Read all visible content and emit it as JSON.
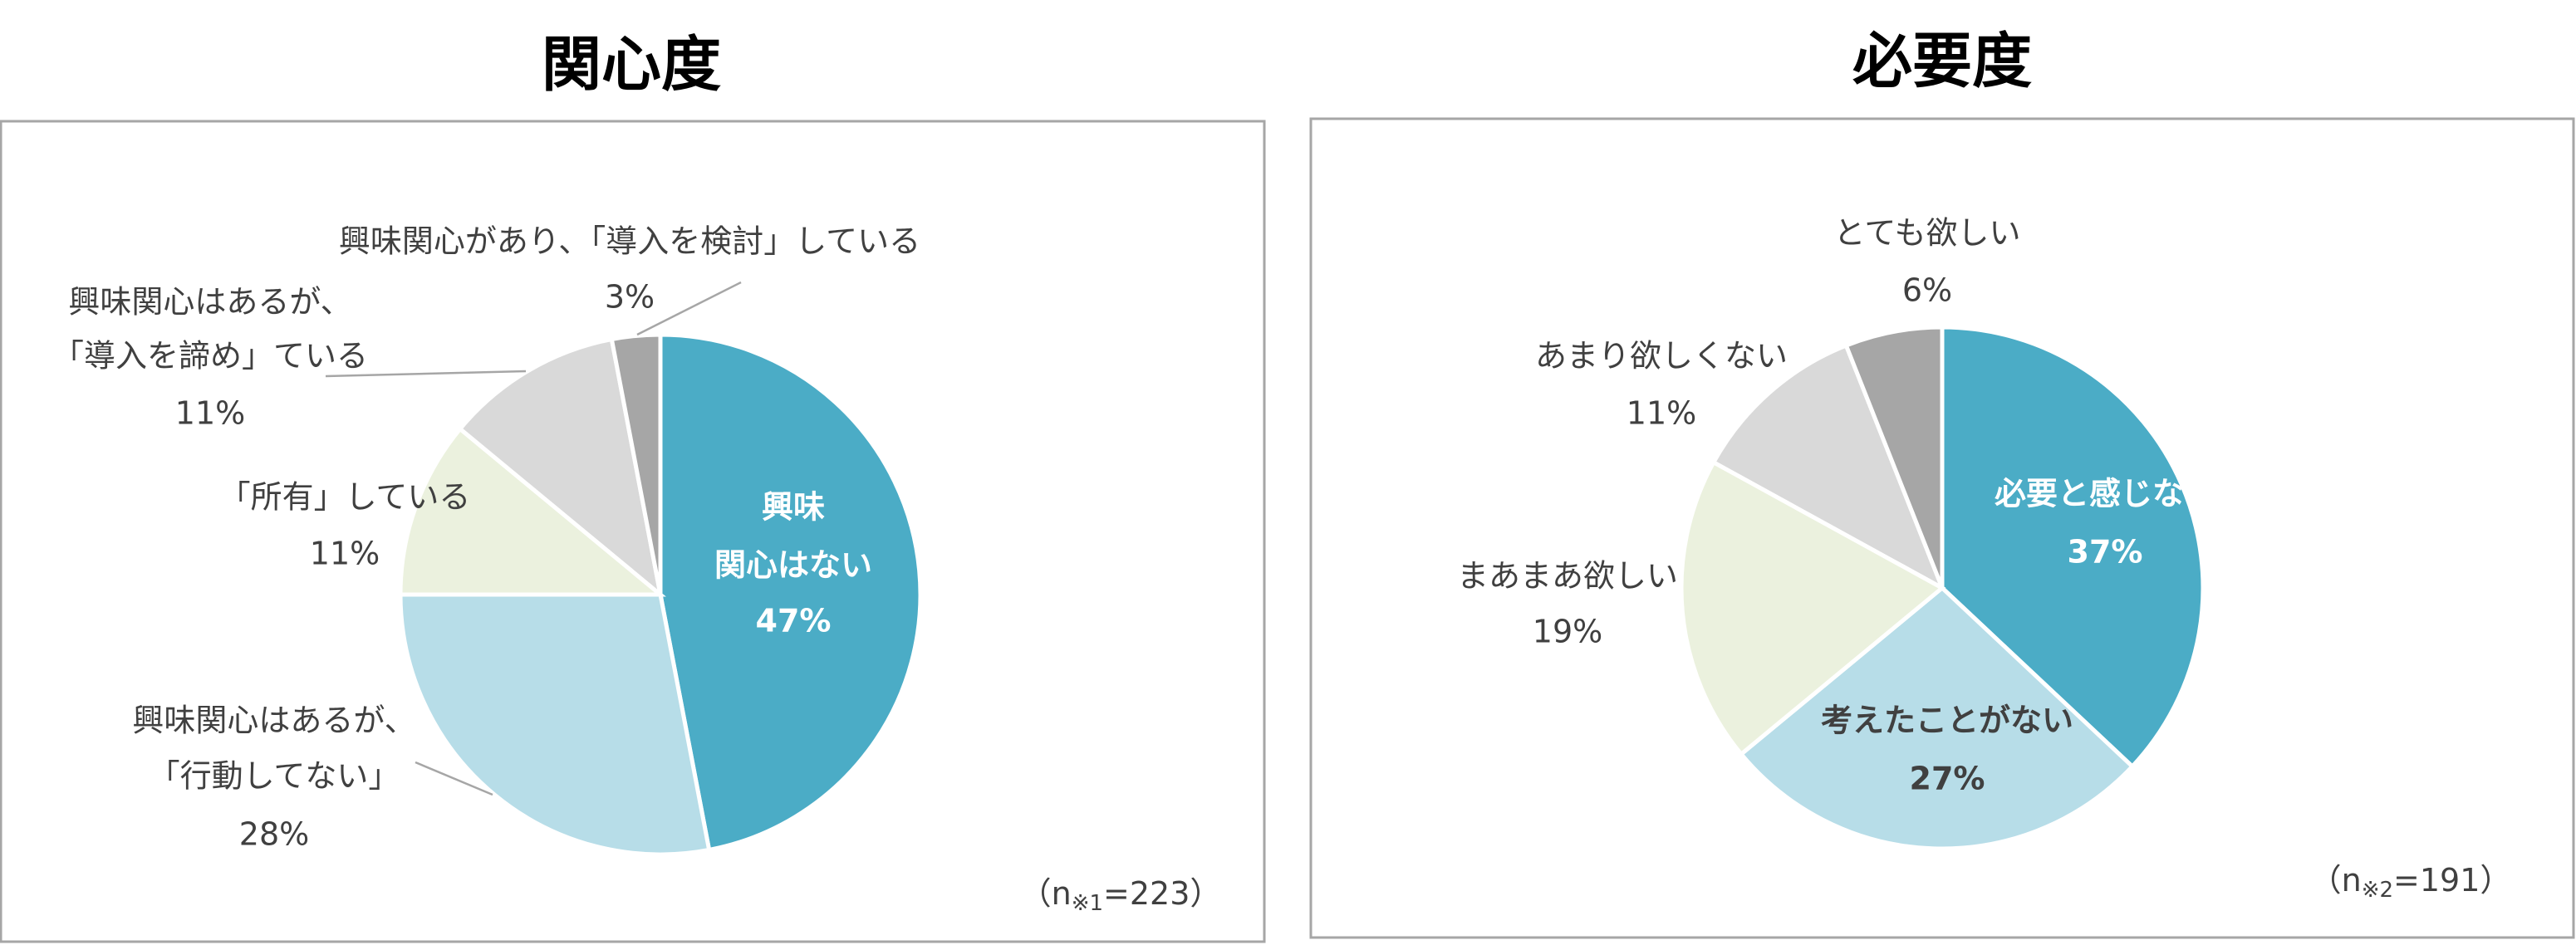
{
  "chart_data": [
    {
      "type": "pie",
      "title": "関心度",
      "categories": [
        [
          "興味",
          "関心はない"
        ],
        [
          "興味関心はあるが、",
          "「行動してない」"
        ],
        [
          "「所有」している"
        ],
        [
          "興味関心はあるが、",
          "「導入を諦め」ている"
        ],
        [
          "興味関心があり、「導入を検討」している"
        ]
      ],
      "values": [
        47,
        28,
        11,
        11,
        3
      ],
      "value_labels": [
        "47%",
        "28%",
        "11%",
        "11%",
        "3%"
      ],
      "colors": [
        "#4bacc6",
        "#b7dde8",
        "#ebf1de",
        "#d9d9d9",
        "#a6a6a6"
      ],
      "note": {
        "prefix": "（n",
        "sub": "※1",
        "suffix": "=223）"
      }
    },
    {
      "type": "pie",
      "title": "必要度",
      "categories": [
        [
          "必要と感じない"
        ],
        [
          "考えたことがない"
        ],
        [
          "まあまあ欲しい"
        ],
        [
          "あまり欲しくない"
        ],
        [
          "とても欲しい"
        ]
      ],
      "values": [
        37,
        27,
        19,
        11,
        6
      ],
      "value_labels": [
        "37%",
        "27%",
        "19%",
        "11%",
        "6%"
      ],
      "colors": [
        "#4bacc6",
        "#b7dde8",
        "#ebf1de",
        "#d9d9d9",
        "#a6a6a6"
      ],
      "note": {
        "prefix": "（n",
        "sub": "※2",
        "suffix": "=191）"
      }
    }
  ]
}
